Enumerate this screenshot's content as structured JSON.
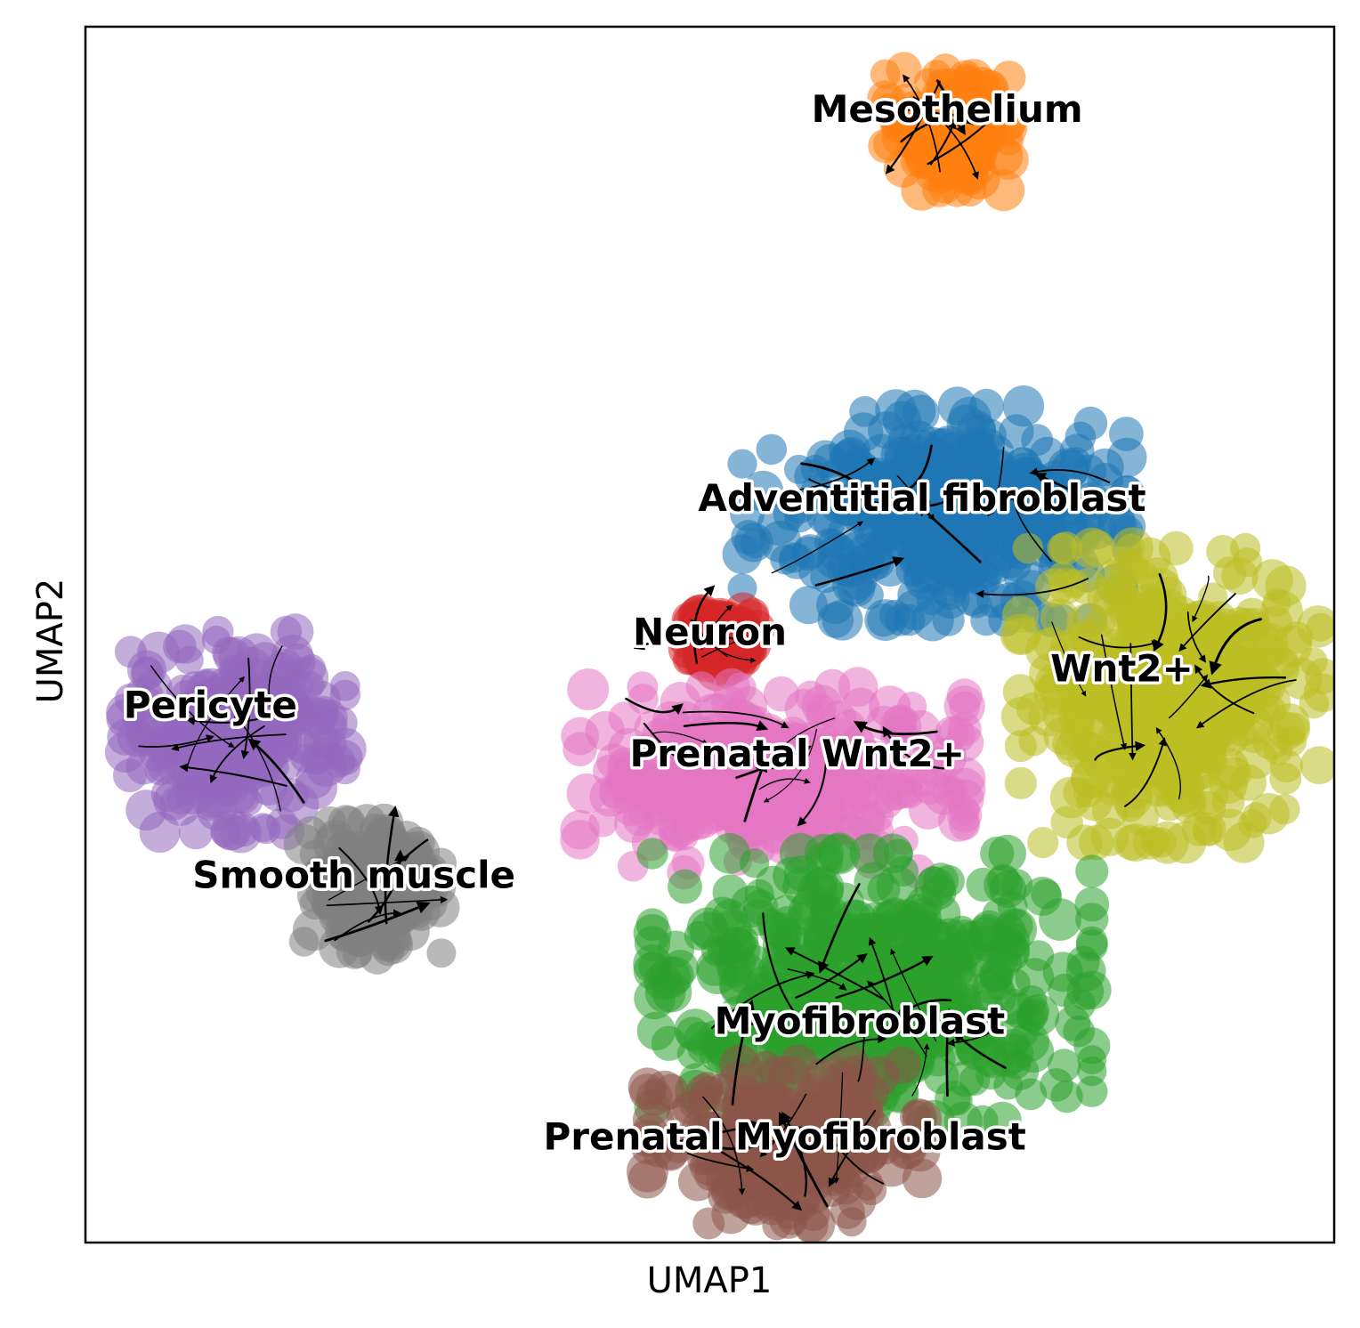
{
  "chart_data": {
    "type": "scatter",
    "subtype": "umap-velocity-stream",
    "xlabel": "UMAP1",
    "ylabel": "UMAP2",
    "xlim": [
      0,
      10
    ],
    "ylim": [
      0,
      10
    ],
    "grid": false,
    "legend": "on data",
    "clusters": [
      {
        "name": "Mesothelium",
        "color": "#ff7f0e",
        "center": [
          6.9,
          9.15
        ],
        "spread": [
          0.45,
          0.45
        ],
        "label_at": [
          6.9,
          9.3
        ]
      },
      {
        "name": "Adventitial fibroblast",
        "color": "#1f77b4",
        "center": [
          6.8,
          6.0
        ],
        "spread": [
          1.4,
          0.8
        ],
        "label_at": [
          6.7,
          6.1
        ]
      },
      {
        "name": "Wnt2+",
        "color": "#bcbd22",
        "center": [
          8.7,
          4.5
        ],
        "spread": [
          1.1,
          1.1
        ],
        "label_at": [
          8.3,
          4.7
        ]
      },
      {
        "name": "Neuron",
        "color": "#d62728",
        "center": [
          5.1,
          4.95
        ],
        "spread": [
          0.25,
          0.22
        ],
        "label_at": [
          5.0,
          5.0
        ]
      },
      {
        "name": "Prenatal Wnt2+",
        "color": "#e377c2",
        "center": [
          5.5,
          3.8
        ],
        "spread": [
          1.4,
          0.7
        ],
        "label_at": [
          5.7,
          4.0
        ]
      },
      {
        "name": "Pericyte",
        "color": "#9467bd",
        "center": [
          1.2,
          4.2
        ],
        "spread": [
          0.8,
          0.75
        ],
        "label_at": [
          1.0,
          4.4
        ]
      },
      {
        "name": "Smooth muscle",
        "color": "#7f7f7f",
        "center": [
          2.3,
          2.9
        ],
        "spread": [
          0.5,
          0.5
        ],
        "label_at": [
          2.15,
          3.0
        ]
      },
      {
        "name": "Myofibroblast",
        "color": "#2ca02c",
        "center": [
          6.3,
          2.1
        ],
        "spread": [
          1.6,
          1.0
        ],
        "label_at": [
          6.2,
          1.8
        ]
      },
      {
        "name": "Prenatal Myofibroblast",
        "color": "#8c564b",
        "center": [
          5.6,
          0.8
        ],
        "spread": [
          1.0,
          0.6
        ],
        "label_at": [
          5.6,
          0.85
        ]
      }
    ]
  }
}
